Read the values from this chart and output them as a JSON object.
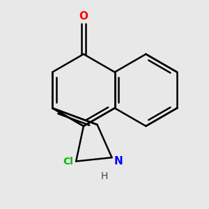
{
  "background_color": "#e8e8e8",
  "bond_color": "#000000",
  "bond_width": 1.8,
  "atom_colors": {
    "O": "#ff0000",
    "N": "#0000ff",
    "Cl": "#00bb00"
  },
  "font_size": 11,
  "figsize": [
    3.0,
    3.0
  ],
  "dpi": 100,
  "xlim": [
    -0.5,
    5.2
  ],
  "ylim": [
    -1.0,
    3.8
  ]
}
